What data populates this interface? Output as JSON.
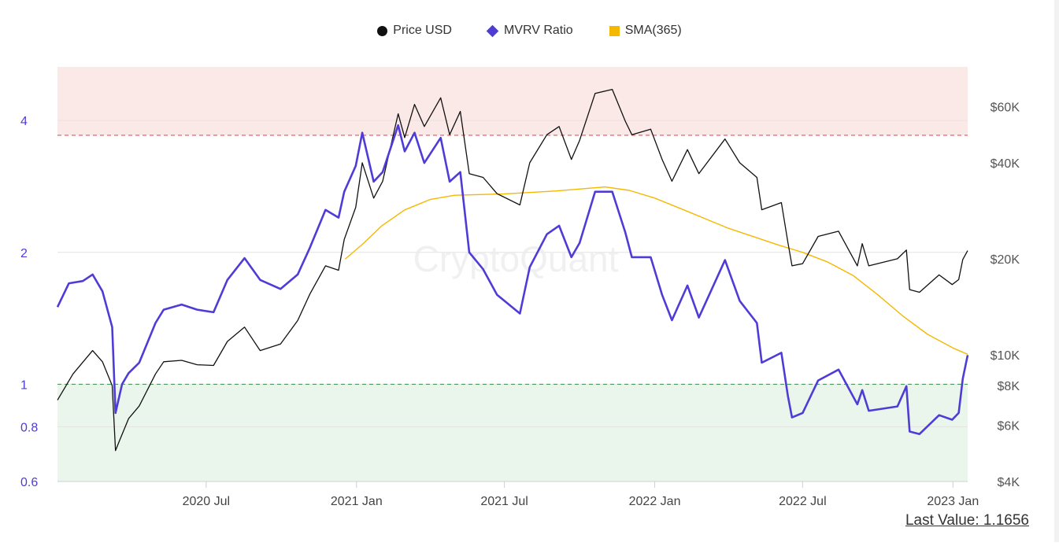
{
  "legend": [
    {
      "label": "Price USD",
      "color": "#111111",
      "icon": "circle-icon"
    },
    {
      "label": "MVRV Ratio",
      "color": "#4f3cd6",
      "icon": "diamond-icon"
    },
    {
      "label": "SMA(365)",
      "color": "#f5b800",
      "icon": "square-icon"
    }
  ],
  "last_value": "Last Value: 1.1656",
  "chart_data": {
    "type": "line",
    "x_range": [
      "2020-01-01",
      "2023-01-19"
    ],
    "x_ticks": [
      {
        "date": "2020-07-01",
        "label": "2020 Jul"
      },
      {
        "date": "2021-01-01",
        "label": "2021 Jan"
      },
      {
        "date": "2021-07-01",
        "label": "2021 Jul"
      },
      {
        "date": "2022-01-01",
        "label": "2022 Jan"
      },
      {
        "date": "2022-07-01",
        "label": "2022 Jul"
      },
      {
        "date": "2023-01-01",
        "label": "2023 Jan"
      }
    ],
    "left_axis": {
      "scale": "log",
      "range": [
        0.6,
        5.3
      ],
      "ticks": [
        {
          "v": 0.6,
          "label": "0.6"
        },
        {
          "v": 0.8,
          "label": "0.8"
        },
        {
          "v": 1,
          "label": "1"
        },
        {
          "v": 2,
          "label": "2"
        },
        {
          "v": 4,
          "label": "4"
        }
      ]
    },
    "right_axis": {
      "scale": "log",
      "range": [
        4000,
        80000
      ],
      "ticks": [
        {
          "v": 4000,
          "label": "$4K"
        },
        {
          "v": 6000,
          "label": "$6K"
        },
        {
          "v": 8000,
          "label": "$8K"
        },
        {
          "v": 10000,
          "label": "$10K"
        },
        {
          "v": 20000,
          "label": "$20K"
        },
        {
          "v": 40000,
          "label": "$40K"
        },
        {
          "v": 60000,
          "label": "$60K"
        }
      ]
    },
    "zones": {
      "overvalued_from": 3.7,
      "undervalued_below": 1,
      "overvalued_color": "#fbe9e7",
      "undervalued_color": "#eaf6ec",
      "overvalued_line": "#e05555",
      "undervalued_line": "#4c9a5b"
    },
    "series": [
      {
        "name": "Price USD",
        "axis": "right",
        "color": "#111111",
        "points": [
          [
            "2020-01-01",
            7200
          ],
          [
            "2020-01-20",
            8700
          ],
          [
            "2020-02-13",
            10300
          ],
          [
            "2020-02-25",
            9500
          ],
          [
            "2020-03-08",
            8000
          ],
          [
            "2020-03-12",
            5000
          ],
          [
            "2020-03-16",
            5300
          ],
          [
            "2020-03-28",
            6300
          ],
          [
            "2020-04-10",
            6900
          ],
          [
            "2020-04-30",
            8700
          ],
          [
            "2020-05-10",
            9500
          ],
          [
            "2020-06-01",
            9600
          ],
          [
            "2020-06-20",
            9300
          ],
          [
            "2020-07-10",
            9250
          ],
          [
            "2020-07-27",
            11000
          ],
          [
            "2020-08-17",
            12200
          ],
          [
            "2020-09-05",
            10300
          ],
          [
            "2020-09-30",
            10800
          ],
          [
            "2020-10-21",
            12800
          ],
          [
            "2020-11-05",
            15500
          ],
          [
            "2020-11-24",
            19000
          ],
          [
            "2020-12-10",
            18400
          ],
          [
            "2020-12-17",
            23000
          ],
          [
            "2020-12-31",
            29000
          ],
          [
            "2021-01-08",
            40000
          ],
          [
            "2021-01-22",
            31000
          ],
          [
            "2021-02-02",
            35000
          ],
          [
            "2021-02-21",
            57000
          ],
          [
            "2021-03-01",
            48000
          ],
          [
            "2021-03-13",
            61000
          ],
          [
            "2021-03-25",
            52000
          ],
          [
            "2021-04-14",
            64000
          ],
          [
            "2021-04-25",
            49000
          ],
          [
            "2021-05-08",
            58000
          ],
          [
            "2021-05-19",
            37000
          ],
          [
            "2021-06-05",
            36000
          ],
          [
            "2021-06-22",
            32000
          ],
          [
            "2021-07-20",
            29500
          ],
          [
            "2021-08-01",
            40000
          ],
          [
            "2021-08-22",
            49000
          ],
          [
            "2021-09-06",
            52000
          ],
          [
            "2021-09-21",
            41000
          ],
          [
            "2021-10-01",
            47000
          ],
          [
            "2021-10-20",
            66000
          ],
          [
            "2021-11-10",
            68000
          ],
          [
            "2021-11-26",
            54000
          ],
          [
            "2021-12-04",
            49000
          ],
          [
            "2021-12-27",
            51000
          ],
          [
            "2022-01-10",
            41000
          ],
          [
            "2022-01-22",
            35000
          ],
          [
            "2022-02-10",
            44000
          ],
          [
            "2022-02-24",
            37000
          ],
          [
            "2022-03-28",
            47500
          ],
          [
            "2022-04-15",
            40000
          ],
          [
            "2022-05-06",
            36000
          ],
          [
            "2022-05-12",
            28500
          ],
          [
            "2022-06-05",
            30000
          ],
          [
            "2022-06-13",
            22500
          ],
          [
            "2022-06-18",
            19000
          ],
          [
            "2022-07-01",
            19300
          ],
          [
            "2022-07-20",
            23500
          ],
          [
            "2022-08-14",
            24400
          ],
          [
            "2022-09-06",
            19000
          ],
          [
            "2022-09-12",
            22300
          ],
          [
            "2022-09-20",
            19000
          ],
          [
            "2022-10-25",
            20000
          ],
          [
            "2022-11-05",
            21300
          ],
          [
            "2022-11-09",
            16000
          ],
          [
            "2022-11-21",
            15700
          ],
          [
            "2022-12-15",
            17800
          ],
          [
            "2022-12-31",
            16600
          ],
          [
            "2023-01-08",
            17200
          ],
          [
            "2023-01-13",
            19900
          ],
          [
            "2023-01-19",
            21200
          ]
        ]
      },
      {
        "name": "MVRV Ratio",
        "axis": "left",
        "color": "#4f3cd6",
        "points": [
          [
            "2020-01-01",
            1.5
          ],
          [
            "2020-01-15",
            1.7
          ],
          [
            "2020-02-01",
            1.72
          ],
          [
            "2020-02-13",
            1.78
          ],
          [
            "2020-02-25",
            1.63
          ],
          [
            "2020-03-08",
            1.35
          ],
          [
            "2020-03-12",
            0.86
          ],
          [
            "2020-03-20",
            1.0
          ],
          [
            "2020-03-28",
            1.06
          ],
          [
            "2020-04-10",
            1.12
          ],
          [
            "2020-04-30",
            1.38
          ],
          [
            "2020-05-10",
            1.48
          ],
          [
            "2020-06-01",
            1.52
          ],
          [
            "2020-06-20",
            1.48
          ],
          [
            "2020-07-10",
            1.46
          ],
          [
            "2020-07-27",
            1.73
          ],
          [
            "2020-08-17",
            1.94
          ],
          [
            "2020-09-05",
            1.73
          ],
          [
            "2020-09-30",
            1.65
          ],
          [
            "2020-10-21",
            1.78
          ],
          [
            "2020-11-05",
            2.05
          ],
          [
            "2020-11-24",
            2.5
          ],
          [
            "2020-12-10",
            2.4
          ],
          [
            "2020-12-17",
            2.75
          ],
          [
            "2020-12-31",
            3.15
          ],
          [
            "2021-01-08",
            3.75
          ],
          [
            "2021-01-22",
            2.9
          ],
          [
            "2021-02-02",
            3.05
          ],
          [
            "2021-02-21",
            3.9
          ],
          [
            "2021-03-01",
            3.4
          ],
          [
            "2021-03-13",
            3.75
          ],
          [
            "2021-03-25",
            3.2
          ],
          [
            "2021-04-14",
            3.65
          ],
          [
            "2021-04-25",
            2.9
          ],
          [
            "2021-05-08",
            3.05
          ],
          [
            "2021-05-19",
            2.0
          ],
          [
            "2021-06-05",
            1.83
          ],
          [
            "2021-06-22",
            1.6
          ],
          [
            "2021-07-20",
            1.45
          ],
          [
            "2021-08-01",
            1.85
          ],
          [
            "2021-08-22",
            2.2
          ],
          [
            "2021-09-06",
            2.3
          ],
          [
            "2021-09-21",
            1.95
          ],
          [
            "2021-10-01",
            2.1
          ],
          [
            "2021-10-20",
            2.75
          ],
          [
            "2021-11-10",
            2.75
          ],
          [
            "2021-11-26",
            2.22
          ],
          [
            "2021-12-04",
            1.95
          ],
          [
            "2021-12-27",
            1.95
          ],
          [
            "2022-01-10",
            1.6
          ],
          [
            "2022-01-22",
            1.4
          ],
          [
            "2022-02-10",
            1.68
          ],
          [
            "2022-02-24",
            1.42
          ],
          [
            "2022-03-28",
            1.92
          ],
          [
            "2022-04-15",
            1.55
          ],
          [
            "2022-05-06",
            1.38
          ],
          [
            "2022-05-12",
            1.12
          ],
          [
            "2022-06-05",
            1.18
          ],
          [
            "2022-06-13",
            0.94
          ],
          [
            "2022-06-18",
            0.84
          ],
          [
            "2022-07-01",
            0.86
          ],
          [
            "2022-07-20",
            1.02
          ],
          [
            "2022-08-14",
            1.08
          ],
          [
            "2022-09-06",
            0.9
          ],
          [
            "2022-09-12",
            0.97
          ],
          [
            "2022-09-20",
            0.87
          ],
          [
            "2022-10-25",
            0.89
          ],
          [
            "2022-11-05",
            0.99
          ],
          [
            "2022-11-09",
            0.78
          ],
          [
            "2022-11-21",
            0.77
          ],
          [
            "2022-12-15",
            0.85
          ],
          [
            "2022-12-31",
            0.83
          ],
          [
            "2023-01-08",
            0.86
          ],
          [
            "2023-01-13",
            1.03
          ],
          [
            "2023-01-19",
            1.1656
          ]
        ]
      },
      {
        "name": "SMA(365)",
        "axis": "left",
        "color": "#f5b800",
        "points": [
          [
            "2020-12-18",
            1.93
          ],
          [
            "2021-01-10",
            2.1
          ],
          [
            "2021-02-01",
            2.3
          ],
          [
            "2021-03-01",
            2.5
          ],
          [
            "2021-04-01",
            2.64
          ],
          [
            "2021-05-01",
            2.7
          ],
          [
            "2021-07-01",
            2.72
          ],
          [
            "2021-09-01",
            2.76
          ],
          [
            "2021-11-01",
            2.82
          ],
          [
            "2021-12-01",
            2.77
          ],
          [
            "2022-01-01",
            2.66
          ],
          [
            "2022-02-01",
            2.52
          ],
          [
            "2022-04-01",
            2.27
          ],
          [
            "2022-06-01",
            2.08
          ],
          [
            "2022-07-01",
            2.0
          ],
          [
            "2022-08-01",
            1.9
          ],
          [
            "2022-09-01",
            1.77
          ],
          [
            "2022-10-01",
            1.6
          ],
          [
            "2022-11-01",
            1.43
          ],
          [
            "2022-12-01",
            1.3
          ],
          [
            "2023-01-01",
            1.21
          ],
          [
            "2023-01-19",
            1.17
          ]
        ]
      }
    ]
  }
}
